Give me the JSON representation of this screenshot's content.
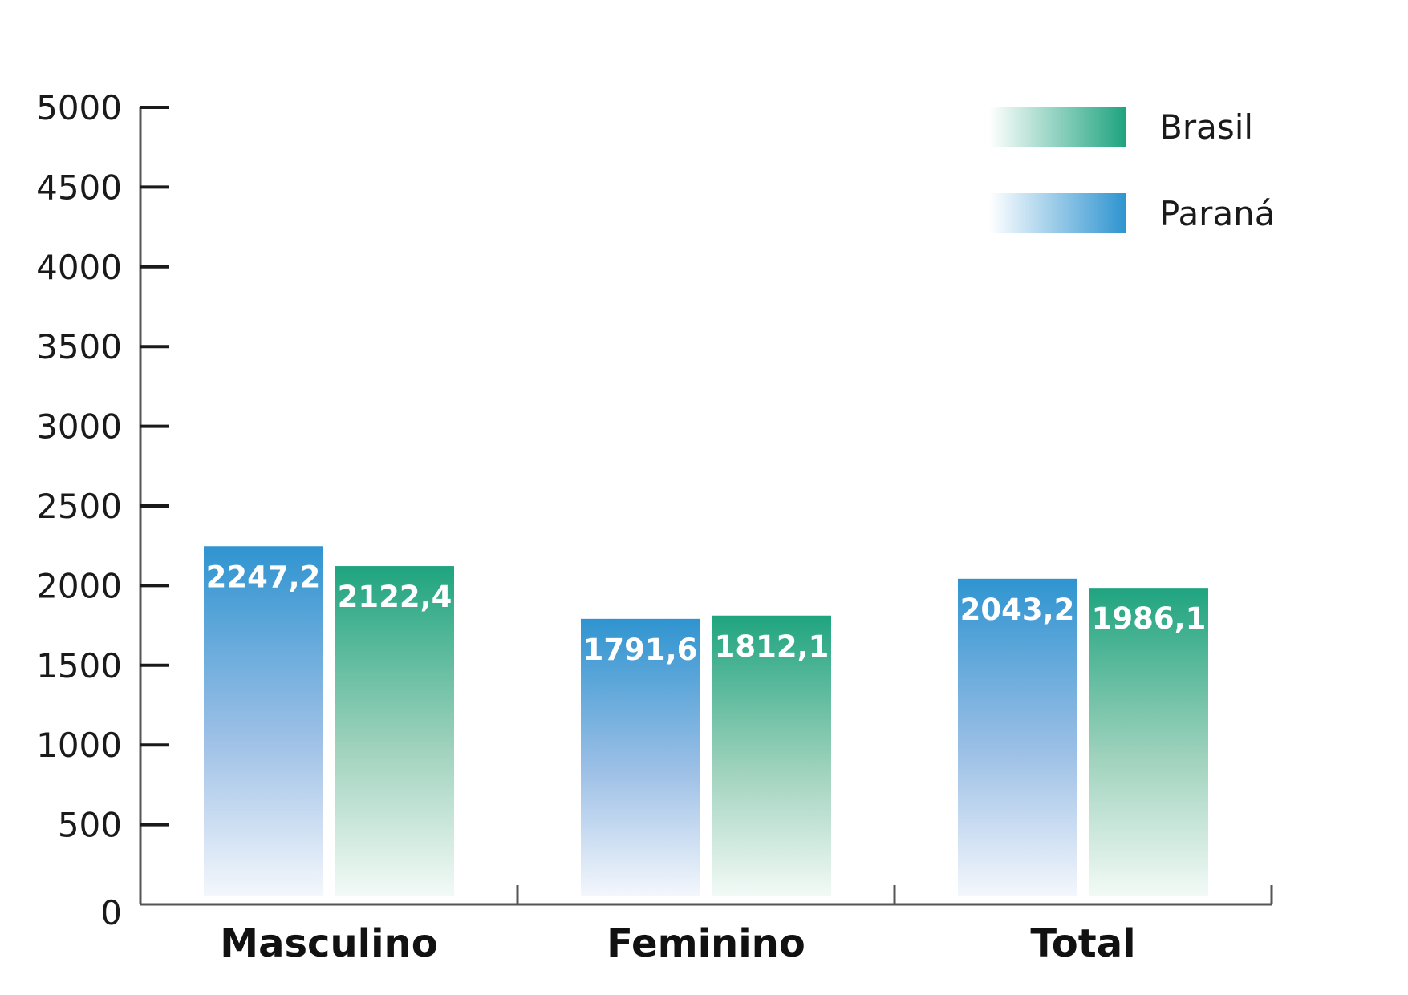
{
  "chart_data": {
    "type": "bar",
    "title": "",
    "xlabel": "",
    "ylabel": "",
    "categories": [
      "Masculino",
      "Feminino",
      "Total"
    ],
    "ylim": [
      0,
      5000
    ],
    "yticks": [
      "0",
      "500",
      "1000",
      "1500",
      "2000",
      "2500",
      "3000",
      "3500",
      "4000",
      "4500",
      "5000"
    ],
    "grid": false,
    "legend_position": "top-right",
    "series": [
      {
        "name": "Paraná",
        "color": "#2f94d0",
        "values": [
          2247.2,
          1791.6,
          2043.2
        ],
        "labels": [
          "2247,2",
          "1791,6",
          "2043,2"
        ]
      },
      {
        "name": "Brasil",
        "color": "#1fa47f",
        "values": [
          2122.4,
          1812.1,
          1986.1
        ],
        "labels": [
          "2122,4",
          "1812,1",
          "1986,1"
        ]
      }
    ],
    "legend_order": [
      "Brasil",
      "Paraná"
    ]
  }
}
